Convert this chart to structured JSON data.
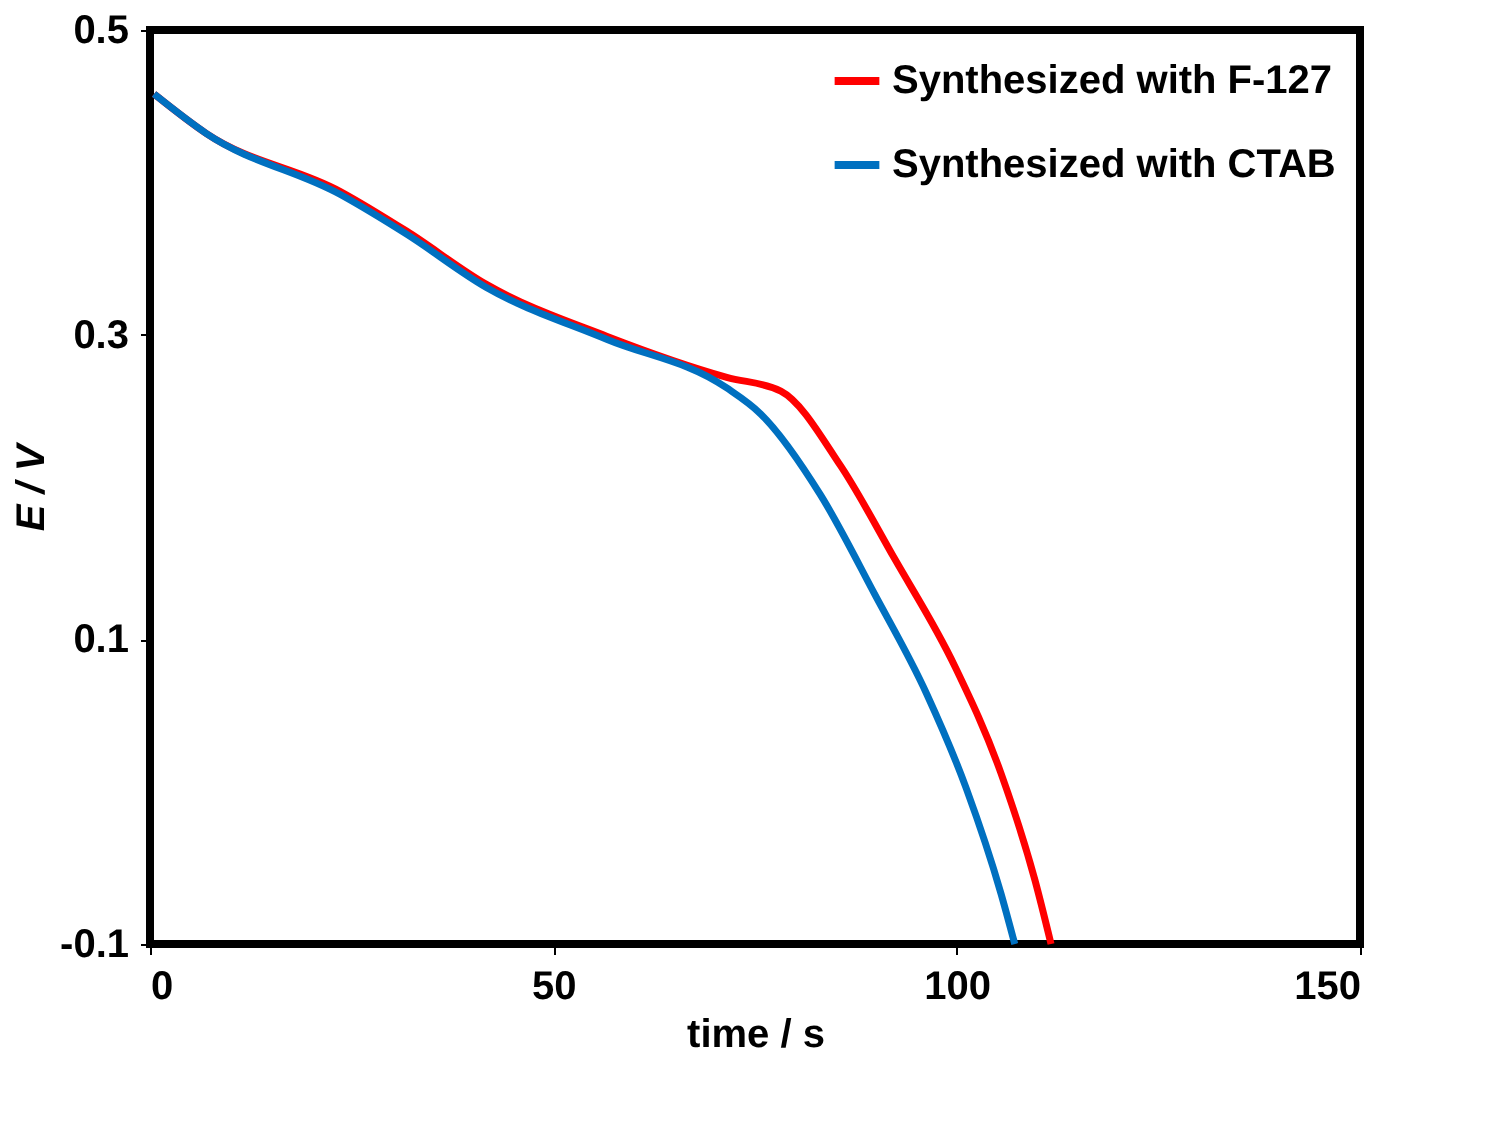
{
  "chart_data": {
    "type": "line",
    "xlabel": "time / s",
    "ylabel": "E / V",
    "xlim": [
      0,
      150
    ],
    "xticks": [
      0,
      50,
      100,
      150
    ],
    "ylim": [
      -0.1,
      0.5
    ],
    "yticks": [
      -0.1,
      0.1,
      0.3,
      0.5
    ],
    "grid": false,
    "legend": "top right",
    "marker": "none",
    "line_style": "solid",
    "series": [
      {
        "name": "Synthesized with F-127",
        "color": "#ff0000",
        "x": [
          0.5,
          7,
          23.6,
          31.8,
          41.7,
          56.6,
          71.5,
          78.2,
          85.6,
          92.3,
          99.8,
          105.5,
          109.7,
          111.7
        ],
        "values": [
          0.458,
          0.432,
          0.394,
          0.368,
          0.333,
          0.299,
          0.272,
          0.263,
          0.214,
          0.153,
          0.082,
          0.012,
          -0.058,
          -0.1
        ]
      },
      {
        "name": "Synthesized with CTAB",
        "color": "#0070c0",
        "x": [
          0.5,
          7,
          23.6,
          31.8,
          41.7,
          56.6,
          71.5,
          75.7,
          83.1,
          89.8,
          96.3,
          101.2,
          105.5,
          107.2
        ],
        "values": [
          0.458,
          0.432,
          0.392,
          0.366,
          0.331,
          0.297,
          0.265,
          0.248,
          0.195,
          0.13,
          0.064,
          0.002,
          -0.067,
          -0.1
        ]
      }
    ]
  }
}
